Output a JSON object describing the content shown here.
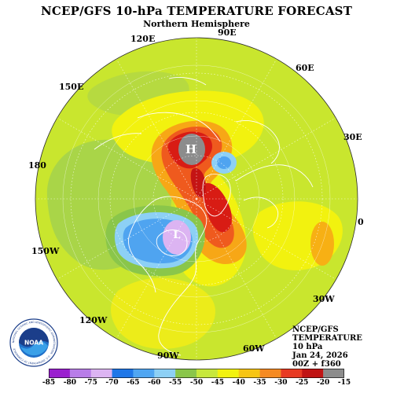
{
  "header": {
    "title": "NCEP/GFS 10-hPa TEMPERATURE FORECAST",
    "subtitle": "Northern Hemisphere"
  },
  "longitude_labels": [
    "90E",
    "60E",
    "30E",
    "0",
    "30W",
    "60W",
    "90W",
    "120W",
    "150W",
    "180",
    "150E",
    "120E"
  ],
  "pressure_centers": {
    "high": "H",
    "low": "L"
  },
  "info_block": {
    "line1": "NCEP/GFS",
    "line2": "TEMPERATURE",
    "line3": "10 hPa",
    "line4": "Jan 24, 2026",
    "line5": "00Z + f360"
  },
  "logo": {
    "text": "NOAA",
    "ring_text": "NATIONAL OCEANIC AND ATMOSPHERIC ADMINISTRATION · U.S. DEPARTMENT OF COMMERCE"
  },
  "colorbar": {
    "labels": [
      "-85",
      "-80",
      "-75",
      "-70",
      "-65",
      "-60",
      "-55",
      "-50",
      "-45",
      "-40",
      "-35",
      "-30",
      "-25",
      "-20",
      "-15"
    ],
    "colors": [
      "#9a1fcf",
      "#b87de8",
      "#dcb4f2",
      "#1f77e8",
      "#50a6f2",
      "#8dd0f5",
      "#8ac64a",
      "#c7e83c",
      "#f2f20f",
      "#f7c514",
      "#f58a22",
      "#e83a22",
      "#c01414",
      "#8c8c8c"
    ]
  },
  "colors": {
    "background": "#ffffff",
    "base_field": "#c9e62e",
    "contour_white": "#ffffff"
  }
}
